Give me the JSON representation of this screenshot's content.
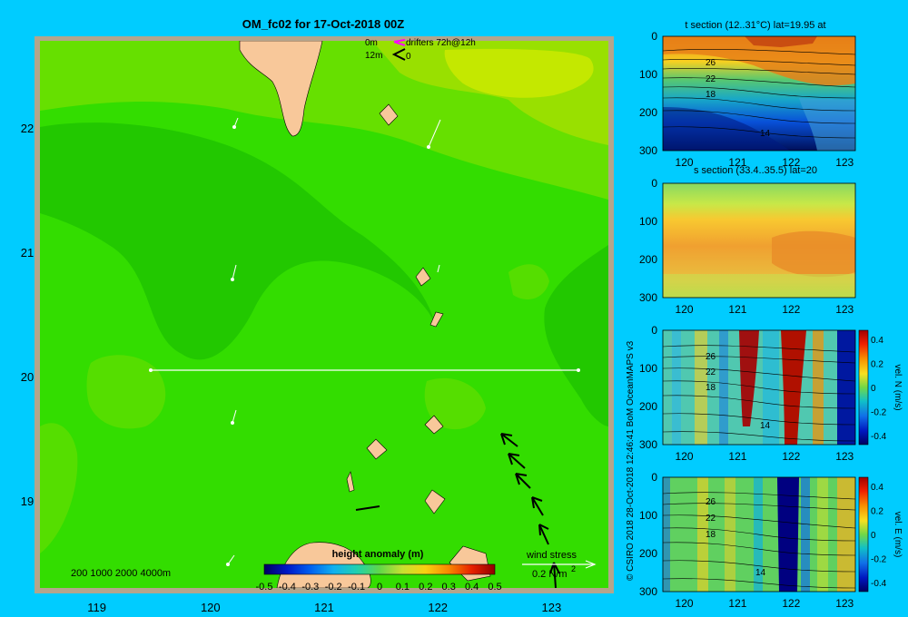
{
  "title": "OM_fc02 for 17-Oct-2018 00Z",
  "credit": "© CSIRO 2018   28-Oct-2018 12:46:41 BoM OceanMAPS v3",
  "colors": {
    "background": "#00ccff",
    "land": "#f8c89a",
    "frame": "#b4a58c"
  },
  "map": {
    "x_ticks": [
      "119",
      "120",
      "121",
      "122",
      "123"
    ],
    "y_ticks": [
      "22",
      "21",
      "20",
      "19"
    ],
    "legend_top": {
      "line1_label": "0m",
      "line1_text": "drifters 72h@12h",
      "line2_label": "12m",
      "line2_text": "0"
    },
    "depth_legend": "200  1000  2000  4000m",
    "colorbar_title": "height anomaly (m)",
    "colorbar_ticks": [
      "-0.5",
      "-0.4",
      "-0.3",
      "-0.2",
      "-0.1",
      "0",
      "0.1",
      "0.2",
      "0.3",
      "0.4",
      "0.5"
    ],
    "wind_stress_label": "wind stress",
    "wind_stress_value": "0.2 N/m",
    "wind_stress_exp": "2"
  },
  "chart_data": [
    {
      "type": "heatmap",
      "title": "OM_fc02 for 17-Oct-2018 00Z",
      "variable": "height anomaly (m)",
      "xlim": [
        118.5,
        123.5
      ],
      "ylim": [
        18.3,
        22.7
      ],
      "x_ticks": [
        119,
        120,
        121,
        122,
        123
      ],
      "y_ticks": [
        19,
        20,
        21,
        22
      ],
      "colorbar_range": [
        -0.5,
        0.5
      ],
      "section_line": {
        "lat": 20,
        "lon_start": 119.5,
        "lon_end": 123.2
      }
    },
    {
      "type": "heatmap",
      "title": "t section (12..31°C) lat=19.95 at",
      "xlim": [
        119.6,
        123.2
      ],
      "ylim": [
        300,
        0
      ],
      "x_ticks": [
        "120",
        "121",
        "122",
        "123"
      ],
      "y_ticks": [
        "0",
        "100",
        "200",
        "300"
      ],
      "contour_labels": [
        "26",
        "22",
        "18",
        "14"
      ]
    },
    {
      "type": "heatmap",
      "title": "s section (33.4..35.5) lat=20",
      "xlim": [
        119.6,
        123.2
      ],
      "ylim": [
        300,
        0
      ],
      "x_ticks": [
        "120",
        "121",
        "122",
        "123"
      ],
      "y_ticks": [
        "0",
        "100",
        "200",
        "300"
      ]
    },
    {
      "type": "heatmap",
      "xlim": [
        119.6,
        123.2
      ],
      "ylim": [
        300,
        0
      ],
      "x_ticks": [
        "120",
        "121",
        "122",
        "123"
      ],
      "y_ticks": [
        "0",
        "100",
        "200",
        "300"
      ],
      "contour_labels": [
        "26",
        "22",
        "18",
        "14"
      ],
      "colorbar_label": "vel. N (m/s)",
      "colorbar_ticks": [
        "0.4",
        "0.2",
        "0",
        "-0.2",
        "-0.4"
      ]
    },
    {
      "type": "heatmap",
      "xlim": [
        119.6,
        123.2
      ],
      "ylim": [
        300,
        0
      ],
      "x_ticks": [
        "120",
        "121",
        "122",
        "123"
      ],
      "y_ticks": [
        "0",
        "100",
        "200",
        "300"
      ],
      "contour_labels": [
        "26",
        "22",
        "18",
        "14"
      ],
      "colorbar_label": "vel. E (m/s)",
      "colorbar_ticks": [
        "0.4",
        "0.2",
        "0",
        "-0.2",
        "-0.4"
      ]
    }
  ]
}
